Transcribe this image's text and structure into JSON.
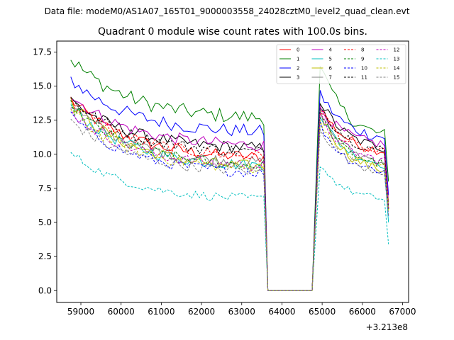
{
  "suptitle": "Data file: modeM0/AS1A07_165T01_9000003558_24028cztM0_level2_quad_clean.evt",
  "chart_data": {
    "type": "line",
    "title": "Quadrant 0 module wise count rates with 100.0s bins.",
    "xlabel": "",
    "ylabel": "",
    "x_offset_label": "+3.213e8",
    "xlim": [
      58400,
      67150
    ],
    "ylim": [
      -0.87,
      18.3
    ],
    "x_ticks": [
      59000,
      60000,
      61000,
      62000,
      63000,
      64000,
      65000,
      66000,
      67000
    ],
    "x_tick_labels": [
      "59000",
      "60000",
      "61000",
      "62000",
      "63000",
      "64000",
      "65000",
      "66000",
      "67000"
    ],
    "y_ticks": [
      0.0,
      2.5,
      5.0,
      7.5,
      10.0,
      12.5,
      15.0,
      17.5
    ],
    "y_tick_labels": [
      "0.0",
      "2.5",
      "5.0",
      "7.5",
      "10.0",
      "12.5",
      "15.0",
      "17.5"
    ],
    "legend_position": "upper right",
    "gap": {
      "last_before": 63550,
      "zero_from": 63650,
      "zero_to": 64750,
      "first_after": 64850
    },
    "segment1": {
      "x_start": 58750,
      "step": 100
    },
    "segment2": {
      "x_start": 64950,
      "step": 100
    },
    "series": [
      {
        "name": "0",
        "color": "#ff0000",
        "dashed": false,
        "s1_start": 14.0,
        "s1_end": 9.6,
        "s2_start": 13.5,
        "s2_end": 10.0,
        "last": 6.0
      },
      {
        "name": "1",
        "color": "#008000",
        "dashed": false,
        "s1_start": 17.0,
        "s1_end": 12.5,
        "s2_start": 16.6,
        "s2_end": 11.0,
        "last": 8.0
      },
      {
        "name": "2",
        "color": "#0000ff",
        "dashed": false,
        "s1_start": 15.5,
        "s1_end": 11.5,
        "s2_start": 14.5,
        "s2_end": 11.0,
        "last": 7.0
      },
      {
        "name": "3",
        "color": "#000000",
        "dashed": false,
        "s1_start": 14.0,
        "s1_end": 10.3,
        "s2_start": 14.0,
        "s2_end": 10.2,
        "last": 6.0
      },
      {
        "name": "4",
        "color": "#bf00bf",
        "dashed": false,
        "s1_start": 14.3,
        "s1_end": 10.5,
        "s2_start": 13.5,
        "s2_end": 10.5,
        "last": 6.5
      },
      {
        "name": "5",
        "color": "#00bfbf",
        "dashed": false,
        "s1_start": 13.5,
        "s1_end": 9.0,
        "s2_start": 13.0,
        "s2_end": 9.0,
        "last": 5.0
      },
      {
        "name": "6",
        "color": "#bfbf00",
        "dashed": false,
        "s1_start": 13.8,
        "s1_end": 8.9,
        "s2_start": 13.2,
        "s2_end": 8.5,
        "last": 6.5
      },
      {
        "name": "7",
        "color": "#808080",
        "dashed": false,
        "s1_start": 13.7,
        "s1_end": 9.2,
        "s2_start": 13.0,
        "s2_end": 9.2,
        "last": 6.0
      },
      {
        "name": "8",
        "color": "#ff0000",
        "dashed": true,
        "s1_start": 13.9,
        "s1_end": 9.7,
        "s2_start": 13.3,
        "s2_end": 9.8,
        "last": 6.0
      },
      {
        "name": "9",
        "color": "#008000",
        "dashed": true,
        "s1_start": 13.6,
        "s1_end": 9.0,
        "s2_start": 13.0,
        "s2_end": 9.0,
        "last": 6.0
      },
      {
        "name": "10",
        "color": "#0000ff",
        "dashed": true,
        "s1_start": 12.8,
        "s1_end": 8.5,
        "s2_start": 12.2,
        "s2_end": 8.5,
        "last": 5.5
      },
      {
        "name": "11",
        "color": "#000000",
        "dashed": true,
        "s1_start": 14.1,
        "s1_end": 10.0,
        "s2_start": 13.7,
        "s2_end": 10.0,
        "last": 6.0
      },
      {
        "name": "12",
        "color": "#bf00bf",
        "dashed": true,
        "s1_start": 13.2,
        "s1_end": 9.0,
        "s2_start": 12.8,
        "s2_end": 9.3,
        "last": 6.0
      },
      {
        "name": "13",
        "color": "#00bfbf",
        "dashed": true,
        "s1_start": 10.1,
        "s1_end": 6.6,
        "s2_start": 9.3,
        "s2_end": 6.5,
        "last": 3.4
      },
      {
        "name": "14",
        "color": "#bfbf00",
        "dashed": true,
        "s1_start": 13.2,
        "s1_end": 8.8,
        "s2_start": 12.5,
        "s2_end": 8.8,
        "last": 5.8
      },
      {
        "name": "15",
        "color": "#808080",
        "dashed": true,
        "s1_start": 12.5,
        "s1_end": 8.6,
        "s2_start": 12.0,
        "s2_end": 8.5,
        "last": 5.5
      }
    ]
  }
}
